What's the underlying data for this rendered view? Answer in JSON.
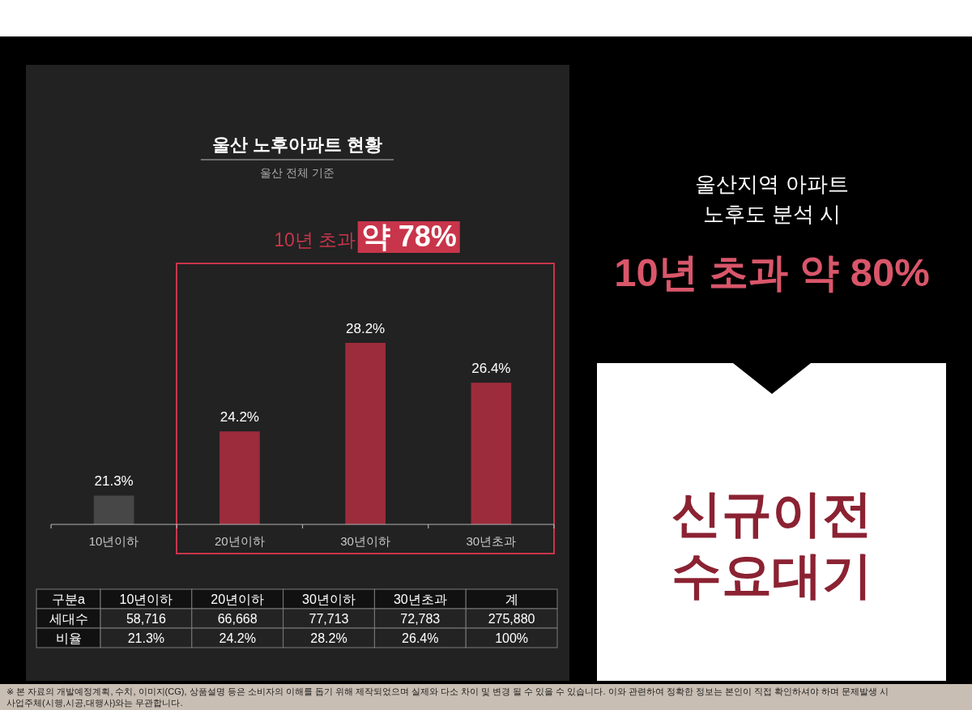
{
  "chart_data": [
    {
      "type": "bar",
      "title": "울산 노후아파트 현황",
      "subtitle": "울산 전체 기준",
      "categories": [
        "10년이하",
        "20년이하",
        "30년이하",
        "30년초과"
      ],
      "values": [
        21.3,
        24.2,
        28.2,
        26.4
      ],
      "colors": [
        "#474747",
        "#9c2c3c",
        "#9c2c3c",
        "#9c2c3c"
      ],
      "value_labels": [
        "21.3%",
        "24.2%",
        "28.2%",
        "26.4%"
      ],
      "ylim": [
        20,
        28.2
      ],
      "tick_labels": "x",
      "annotations": [
        "10년 초과 약 78%",
        "※ 본 자료의 개발예정계획, 수치, 이미지(CG), 상품설명 등은 소비자의 이해를 돕기 위해 제작되었으며 실제와 다소 차이 및 변경 될 수 있을 수 있습니다. 이와 관련하여 정확한 정보는 본인이 직접 확인하셔야 하며 문제발생 시 사업주체(시행,시공,대행사)와는 무관합니다."
      ]
    },
    {
      "type": "other",
      "ylabel": "구분a",
      "categories": [
        "10년이하",
        "20년이하",
        "30년이하",
        "30년초과",
        "계"
      ],
      "y_categories": [
        "세대수",
        "비율"
      ],
      "cell_labels": [
        [
          "58,716",
          "66,668",
          "77,713",
          "72,783",
          "275,880"
        ],
        [
          "21.3%",
          "24.2%",
          "28.2%",
          "26.4%",
          "100%"
        ]
      ]
    },
    {
      "type": "other",
      "title": "울산지역 아파트 노후도 분석 시",
      "subtitle": "10년 초과 약 80%",
      "annotations": [
        "신규이전 수요대기"
      ]
    }
  ]
}
